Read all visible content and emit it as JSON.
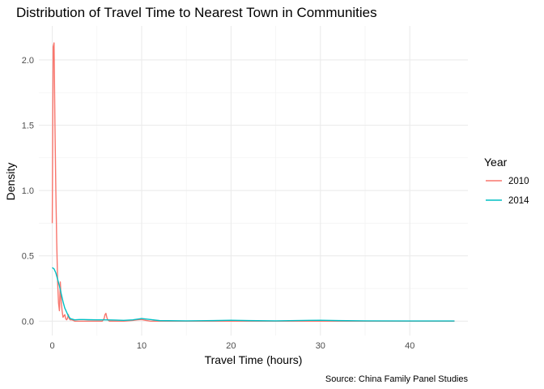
{
  "chart_data": {
    "type": "line",
    "title": "Distribution of Travel Time to Nearest Town in Communities",
    "xlabel": "Travel Time (hours)",
    "ylabel": "Density",
    "caption": "Source: China Family Panel Studies",
    "xlim": [
      -1.5,
      46.5
    ],
    "ylim": [
      -0.11,
      2.26
    ],
    "xticks": [
      0,
      10,
      20,
      30,
      40
    ],
    "yticks": [
      0.0,
      0.5,
      1.0,
      1.5,
      2.0
    ],
    "xtick_labels": [
      "0",
      "10",
      "20",
      "30",
      "40"
    ],
    "ytick_labels": [
      "0.0",
      "0.5",
      "1.0",
      "1.5",
      "2.0"
    ],
    "grid": true,
    "legend": {
      "title": "Year",
      "position": "right"
    },
    "series": [
      {
        "name": "2010",
        "color": "#F8766D",
        "x": [
          0,
          0.1,
          0.2,
          0.3,
          0.4,
          0.5,
          0.6,
          0.7,
          0.8,
          0.9,
          1.0,
          1.1,
          1.2,
          1.3,
          1.4,
          1.5,
          1.6,
          1.7,
          1.8,
          1.9,
          2.0,
          2.2,
          2.5,
          3.0,
          3.5,
          4.0,
          5.0,
          5.6,
          5.8,
          5.9,
          6.0,
          6.1,
          6.2,
          6.4,
          7.0,
          8.0,
          9.0,
          9.5,
          10.0,
          10.5,
          11.0,
          12.0,
          15.0,
          20.0,
          25.0,
          30.0,
          35.0,
          40.0,
          45.0
        ],
        "y": [
          0.75,
          2.1,
          2.13,
          1.5,
          1.0,
          0.6,
          0.3,
          0.14,
          0.08,
          0.3,
          0.15,
          0.08,
          0.03,
          0.04,
          0.05,
          0.02,
          0.01,
          0.02,
          0.05,
          0.02,
          0.01,
          0.01,
          0.0,
          0.0,
          0.0,
          0.0,
          0.0,
          0.0,
          0.02,
          0.05,
          0.06,
          0.03,
          0.01,
          0.0,
          0.0,
          0.0,
          0.005,
          0.01,
          0.012,
          0.005,
          0.0,
          0.0,
          0.0,
          0.0,
          0.0,
          0.0,
          0.0,
          0.0,
          0.0
        ]
      },
      {
        "name": "2014",
        "color": "#00BFC4",
        "x": [
          0,
          0.2,
          0.4,
          0.6,
          0.8,
          1.0,
          1.2,
          1.4,
          1.6,
          1.8,
          2.0,
          2.5,
          3.0,
          3.5,
          4.0,
          5.0,
          6.0,
          7.0,
          8.0,
          9.0,
          10.0,
          11.0,
          12.0,
          15.0,
          18.0,
          20.0,
          22.0,
          25.0,
          28.0,
          30.0,
          32.0,
          35.0,
          40.0,
          45.0
        ],
        "y": [
          0.41,
          0.4,
          0.37,
          0.32,
          0.27,
          0.21,
          0.15,
          0.1,
          0.07,
          0.04,
          0.02,
          0.01,
          0.012,
          0.012,
          0.011,
          0.01,
          0.01,
          0.008,
          0.006,
          0.01,
          0.02,
          0.012,
          0.004,
          0.002,
          0.004,
          0.007,
          0.004,
          0.002,
          0.005,
          0.007,
          0.004,
          0.002,
          0.001,
          0.001
        ]
      }
    ]
  }
}
